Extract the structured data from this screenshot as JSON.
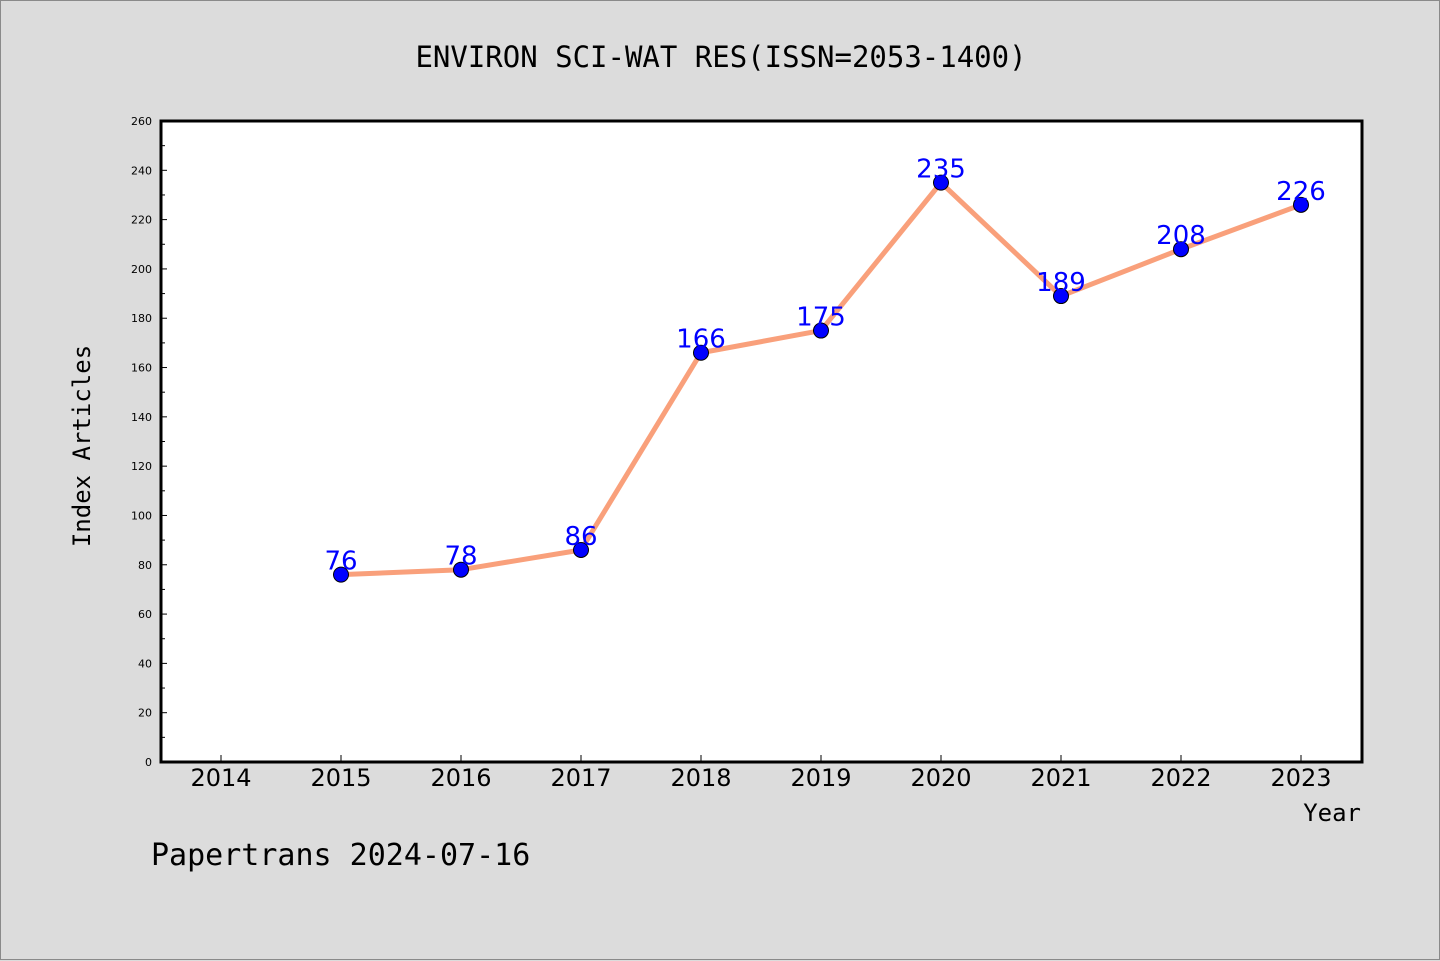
{
  "chart_data": {
    "type": "line",
    "title": "ENVIRON SCI-WAT RES(ISSN=2053-1400)",
    "xlabel": "Year",
    "ylabel": "Index Articles",
    "x_ticks": [
      "2014",
      "2015",
      "2016",
      "2017",
      "2018",
      "2019",
      "2020",
      "2021",
      "2022",
      "2023"
    ],
    "x": [
      "2015",
      "2016",
      "2017",
      "2018",
      "2019",
      "2020",
      "2021",
      "2022",
      "2023"
    ],
    "values": [
      76,
      78,
      86,
      166,
      175,
      235,
      189,
      208,
      226
    ],
    "ylim": [
      0,
      260
    ],
    "y_ticks": [
      0,
      20,
      40,
      60,
      80,
      100,
      120,
      140,
      160,
      180,
      200,
      220,
      240,
      260
    ],
    "line_color": "#f9a07b",
    "marker_color": "#0000ff",
    "label_color": "#0000ff",
    "grid": false,
    "legend": "none"
  },
  "footer": {
    "text": "Papertrans 2024-07-16"
  }
}
